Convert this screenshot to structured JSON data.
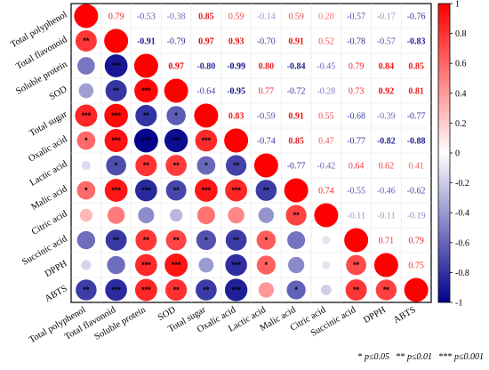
{
  "chart_data": {
    "type": "heatmap",
    "variables": [
      "Total polyphenol",
      "Total flavonoid",
      "Soluble protein",
      "SOD",
      "Total sugar",
      "Oxalic acid",
      "Lactic acid",
      "Malic acid",
      "Citric acid",
      "Succinic acid",
      "DPPH",
      "ABTS"
    ],
    "matrix": [
      [
        1,
        0.79,
        -0.53,
        -0.38,
        0.85,
        0.59,
        -0.14,
        0.59,
        0.28,
        -0.57,
        -0.17,
        -0.76
      ],
      [
        0.79,
        1,
        -0.91,
        -0.79,
        0.97,
        0.93,
        -0.7,
        0.91,
        0.52,
        -0.78,
        -0.57,
        -0.83
      ],
      [
        -0.53,
        -0.91,
        1,
        0.97,
        -0.8,
        -0.99,
        0.8,
        -0.84,
        -0.45,
        0.79,
        0.84,
        0.85
      ],
      [
        -0.38,
        -0.79,
        0.97,
        1,
        -0.64,
        -0.95,
        0.77,
        -0.72,
        -0.28,
        0.73,
        0.92,
        0.81
      ],
      [
        0.85,
        0.97,
        -0.8,
        -0.64,
        1,
        0.83,
        -0.59,
        0.91,
        0.55,
        -0.68,
        -0.39,
        -0.77
      ],
      [
        0.59,
        0.93,
        -0.99,
        -0.95,
        0.83,
        1,
        -0.74,
        0.85,
        0.47,
        -0.77,
        -0.82,
        -0.88
      ],
      [
        -0.14,
        -0.7,
        0.8,
        0.77,
        -0.59,
        -0.74,
        1,
        -0.77,
        -0.42,
        0.64,
        0.62,
        0.41
      ],
      [
        0.59,
        0.91,
        -0.84,
        -0.72,
        0.91,
        0.85,
        -0.77,
        1,
        0.74,
        -0.55,
        -0.46,
        -0.62
      ],
      [
        0.28,
        0.52,
        -0.45,
        -0.28,
        0.55,
        0.47,
        -0.42,
        0.74,
        1,
        -0.11,
        -0.11,
        -0.19
      ],
      [
        -0.57,
        -0.78,
        0.79,
        0.73,
        -0.68,
        -0.77,
        0.64,
        -0.55,
        -0.11,
        1,
        0.71,
        0.79
      ],
      [
        -0.17,
        -0.57,
        0.84,
        0.92,
        -0.39,
        -0.82,
        0.62,
        -0.46,
        -0.11,
        0.71,
        1,
        0.75
      ],
      [
        -0.76,
        -0.83,
        0.85,
        0.81,
        -0.77,
        -0.88,
        0.41,
        -0.62,
        -0.19,
        0.79,
        0.75,
        1
      ]
    ],
    "significance": [
      [
        "",
        "",
        "",
        "",
        "",
        "",
        "",
        "",
        "",
        "",
        "",
        ""
      ],
      [
        "**",
        "",
        "",
        "",
        "",
        "",
        "",
        "",
        "",
        "",
        "",
        ""
      ],
      [
        "",
        "***",
        "",
        "",
        "",
        "",
        "",
        "",
        "",
        "",
        "",
        ""
      ],
      [
        "",
        "**",
        "***",
        "",
        "",
        "",
        "",
        "",
        "",
        "",
        "",
        ""
      ],
      [
        "***",
        "***",
        "**",
        "*",
        "",
        "",
        "",
        "",
        "",
        "",
        "",
        ""
      ],
      [
        "*",
        "***",
        "***",
        "***",
        "***",
        "",
        "",
        "",
        "",
        "",
        "",
        ""
      ],
      [
        "",
        "*",
        "**",
        "**",
        "*",
        "**",
        "",
        "",
        "",
        "",
        "",
        ""
      ],
      [
        "*",
        "***",
        "***",
        "**",
        "***",
        "***",
        "**",
        "",
        "",
        "",
        "",
        ""
      ],
      [
        "",
        "",
        "",
        "",
        "",
        "",
        "",
        "**",
        "",
        "",
        "",
        ""
      ],
      [
        "",
        "**",
        "**",
        "**",
        "*",
        "**",
        "*",
        "",
        "",
        "",
        "",
        ""
      ],
      [
        "",
        "",
        "***",
        "***",
        "",
        "***",
        "*",
        "",
        "",
        "**",
        "",
        ""
      ],
      [
        "**",
        "***",
        "***",
        "**",
        "**",
        "***",
        "",
        "*",
        "",
        "**",
        "**",
        ""
      ]
    ],
    "colorbar_ticks": [
      "1",
      "0.8",
      "0.6",
      "0.4",
      "0.2",
      "0",
      "-0.2",
      "-0.4",
      "-0.6",
      "-0.8",
      "-1"
    ],
    "colorbar_range": [
      -1,
      1
    ],
    "colors": {
      "positive": "#ff0000",
      "negative": "#00008b",
      "neutral": "#ffffff"
    },
    "footnote": {
      "one_star": "*",
      "one_label": "p≤0.05",
      "two_star": "**",
      "two_label": "p≤0.01",
      "three_star": "***",
      "three_label": "p≤0.001"
    }
  }
}
